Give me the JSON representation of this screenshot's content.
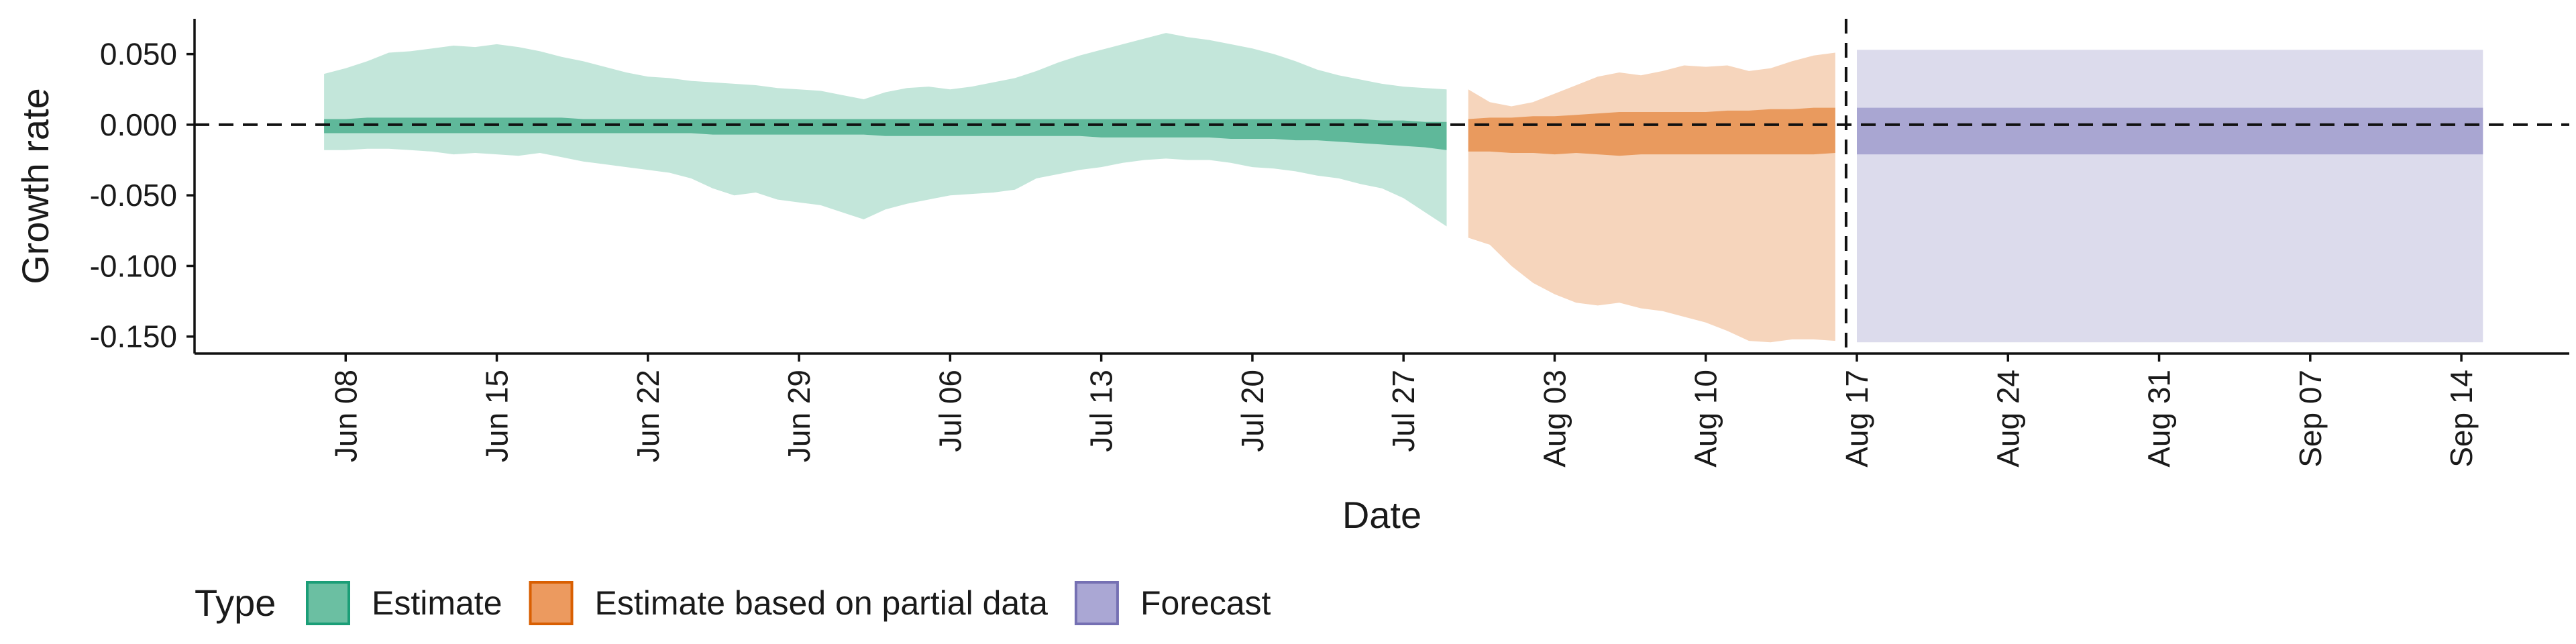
{
  "chart_data": {
    "type": "area",
    "xlabel": "Date",
    "ylabel": "Growth rate",
    "xlim": [
      "2020-06-01",
      "2020-09-19"
    ],
    "ylim": [
      -0.162,
      0.075
    ],
    "y_ticks": [
      {
        "value": 0.05,
        "label": "0.050"
      },
      {
        "value": 0.0,
        "label": "0.000"
      },
      {
        "value": -0.05,
        "label": "-0.050"
      },
      {
        "value": -0.1,
        "label": "-0.100"
      },
      {
        "value": -0.15,
        "label": "-0.150"
      }
    ],
    "x_ticks": [
      {
        "date": "2020-06-08",
        "label": "Jun 08"
      },
      {
        "date": "2020-06-15",
        "label": "Jun 15"
      },
      {
        "date": "2020-06-22",
        "label": "Jun 22"
      },
      {
        "date": "2020-06-29",
        "label": "Jun 29"
      },
      {
        "date": "2020-07-06",
        "label": "Jul 06"
      },
      {
        "date": "2020-07-13",
        "label": "Jul 13"
      },
      {
        "date": "2020-07-20",
        "label": "Jul 20"
      },
      {
        "date": "2020-07-27",
        "label": "Jul 27"
      },
      {
        "date": "2020-08-03",
        "label": "Aug 03"
      },
      {
        "date": "2020-08-10",
        "label": "Aug 10"
      },
      {
        "date": "2020-08-17",
        "label": "Aug 17"
      },
      {
        "date": "2020-08-24",
        "label": "Aug 24"
      },
      {
        "date": "2020-08-31",
        "label": "Aug 31"
      },
      {
        "date": "2020-09-07",
        "label": "Sep 07"
      },
      {
        "date": "2020-09-14",
        "label": "Sep 14"
      }
    ],
    "hline": 0.0,
    "vline": "2020-08-16",
    "grid": false,
    "legend": {
      "title": "Type",
      "position": "bottom-left"
    },
    "series": [
      {
        "name": "Estimate",
        "color_dark": "#5fb89a",
        "color_light": "#c3e6da",
        "x": [
          "2020-06-07",
          "2020-06-08",
          "2020-06-09",
          "2020-06-10",
          "2020-06-11",
          "2020-06-12",
          "2020-06-13",
          "2020-06-14",
          "2020-06-15",
          "2020-06-16",
          "2020-06-17",
          "2020-06-18",
          "2020-06-19",
          "2020-06-20",
          "2020-06-21",
          "2020-06-22",
          "2020-06-23",
          "2020-06-24",
          "2020-06-25",
          "2020-06-26",
          "2020-06-27",
          "2020-06-28",
          "2020-06-29",
          "2020-06-30",
          "2020-07-01",
          "2020-07-02",
          "2020-07-03",
          "2020-07-04",
          "2020-07-05",
          "2020-07-06",
          "2020-07-07",
          "2020-07-08",
          "2020-07-09",
          "2020-07-10",
          "2020-07-11",
          "2020-07-12",
          "2020-07-13",
          "2020-07-14",
          "2020-07-15",
          "2020-07-16",
          "2020-07-17",
          "2020-07-18",
          "2020-07-19",
          "2020-07-20",
          "2020-07-21",
          "2020-07-22",
          "2020-07-23",
          "2020-07-24",
          "2020-07-25",
          "2020-07-26",
          "2020-07-27",
          "2020-07-28",
          "2020-07-29"
        ],
        "lower_90": [
          -0.018,
          -0.018,
          -0.017,
          -0.017,
          -0.018,
          -0.019,
          -0.021,
          -0.02,
          -0.021,
          -0.022,
          -0.02,
          -0.023,
          -0.026,
          -0.028,
          -0.03,
          -0.032,
          -0.034,
          -0.038,
          -0.045,
          -0.05,
          -0.048,
          -0.053,
          -0.055,
          -0.057,
          -0.062,
          -0.067,
          -0.06,
          -0.056,
          -0.053,
          -0.05,
          -0.049,
          -0.048,
          -0.046,
          -0.038,
          -0.035,
          -0.032,
          -0.03,
          -0.027,
          -0.025,
          -0.024,
          -0.025,
          -0.025,
          -0.027,
          -0.03,
          -0.031,
          -0.033,
          -0.036,
          -0.038,
          -0.042,
          -0.045,
          -0.052,
          -0.062,
          -0.072
        ],
        "upper_90": [
          0.036,
          0.04,
          0.045,
          0.051,
          0.052,
          0.054,
          0.056,
          0.055,
          0.057,
          0.055,
          0.052,
          0.048,
          0.045,
          0.041,
          0.037,
          0.034,
          0.033,
          0.031,
          0.03,
          0.029,
          0.028,
          0.026,
          0.025,
          0.024,
          0.021,
          0.018,
          0.023,
          0.026,
          0.027,
          0.025,
          0.027,
          0.03,
          0.033,
          0.038,
          0.044,
          0.049,
          0.053,
          0.057,
          0.061,
          0.065,
          0.062,
          0.06,
          0.057,
          0.054,
          0.05,
          0.045,
          0.039,
          0.035,
          0.032,
          0.029,
          0.027,
          0.026,
          0.025
        ],
        "lower_50": [
          -0.006,
          -0.006,
          -0.006,
          -0.006,
          -0.006,
          -0.006,
          -0.006,
          -0.006,
          -0.006,
          -0.006,
          -0.006,
          -0.006,
          -0.006,
          -0.006,
          -0.006,
          -0.006,
          -0.006,
          -0.006,
          -0.007,
          -0.007,
          -0.007,
          -0.007,
          -0.007,
          -0.007,
          -0.007,
          -0.007,
          -0.008,
          -0.008,
          -0.008,
          -0.008,
          -0.008,
          -0.008,
          -0.008,
          -0.008,
          -0.008,
          -0.008,
          -0.009,
          -0.009,
          -0.009,
          -0.009,
          -0.009,
          -0.009,
          -0.01,
          -0.01,
          -0.01,
          -0.011,
          -0.011,
          -0.012,
          -0.013,
          -0.014,
          -0.015,
          -0.016,
          -0.018
        ],
        "upper_50": [
          0.004,
          0.004,
          0.005,
          0.005,
          0.005,
          0.005,
          0.005,
          0.005,
          0.005,
          0.005,
          0.005,
          0.005,
          0.004,
          0.004,
          0.004,
          0.004,
          0.004,
          0.004,
          0.004,
          0.004,
          0.004,
          0.004,
          0.004,
          0.004,
          0.004,
          0.004,
          0.004,
          0.004,
          0.004,
          0.004,
          0.004,
          0.004,
          0.004,
          0.004,
          0.004,
          0.004,
          0.004,
          0.004,
          0.004,
          0.004,
          0.004,
          0.004,
          0.004,
          0.004,
          0.004,
          0.004,
          0.004,
          0.004,
          0.004,
          0.003,
          0.003,
          0.002,
          0.002
        ]
      },
      {
        "name": "Estimate based on partial data",
        "color_dark": "#e99a5e",
        "color_light": "#f6d5bc",
        "x": [
          "2020-07-30",
          "2020-07-31",
          "2020-08-01",
          "2020-08-02",
          "2020-08-03",
          "2020-08-04",
          "2020-08-05",
          "2020-08-06",
          "2020-08-07",
          "2020-08-08",
          "2020-08-09",
          "2020-08-10",
          "2020-08-11",
          "2020-08-12",
          "2020-08-13",
          "2020-08-14",
          "2020-08-15",
          "2020-08-16"
        ],
        "lower_90": [
          -0.08,
          -0.085,
          -0.1,
          -0.112,
          -0.12,
          -0.126,
          -0.128,
          -0.126,
          -0.13,
          -0.132,
          -0.136,
          -0.14,
          -0.146,
          -0.153,
          -0.154,
          -0.152,
          -0.152,
          -0.153
        ],
        "upper_90": [
          0.025,
          0.016,
          0.013,
          0.016,
          0.022,
          0.028,
          0.034,
          0.037,
          0.035,
          0.038,
          0.042,
          0.041,
          0.042,
          0.038,
          0.04,
          0.045,
          0.049,
          0.051
        ],
        "lower_50": [
          -0.019,
          -0.019,
          -0.02,
          -0.02,
          -0.021,
          -0.02,
          -0.021,
          -0.022,
          -0.021,
          -0.021,
          -0.021,
          -0.021,
          -0.021,
          -0.021,
          -0.021,
          -0.021,
          -0.021,
          -0.02
        ],
        "upper_50": [
          0.004,
          0.005,
          0.005,
          0.006,
          0.006,
          0.007,
          0.008,
          0.009,
          0.009,
          0.009,
          0.009,
          0.009,
          0.01,
          0.01,
          0.011,
          0.011,
          0.012,
          0.012
        ]
      },
      {
        "name": "Forecast",
        "color_dark": "#a9a6d2",
        "color_light": "#dcdbec",
        "x": [
          "2020-08-17",
          "2020-09-15"
        ],
        "lower_90": [
          -0.154,
          -0.154
        ],
        "upper_90": [
          0.053,
          0.053
        ],
        "lower_50": [
          -0.021,
          -0.021
        ],
        "upper_50": [
          0.012,
          0.012
        ]
      }
    ]
  },
  "legend": {
    "title": "Type",
    "items": [
      {
        "label": "Estimate",
        "fill": "#6bbfa2",
        "stroke": "#1b9e77"
      },
      {
        "label": "Estimate based on partial data",
        "fill": "#ec9a5f",
        "stroke": "#d95f02"
      },
      {
        "label": "Forecast",
        "fill": "#aaa7d4",
        "stroke": "#7570b3"
      }
    ]
  }
}
